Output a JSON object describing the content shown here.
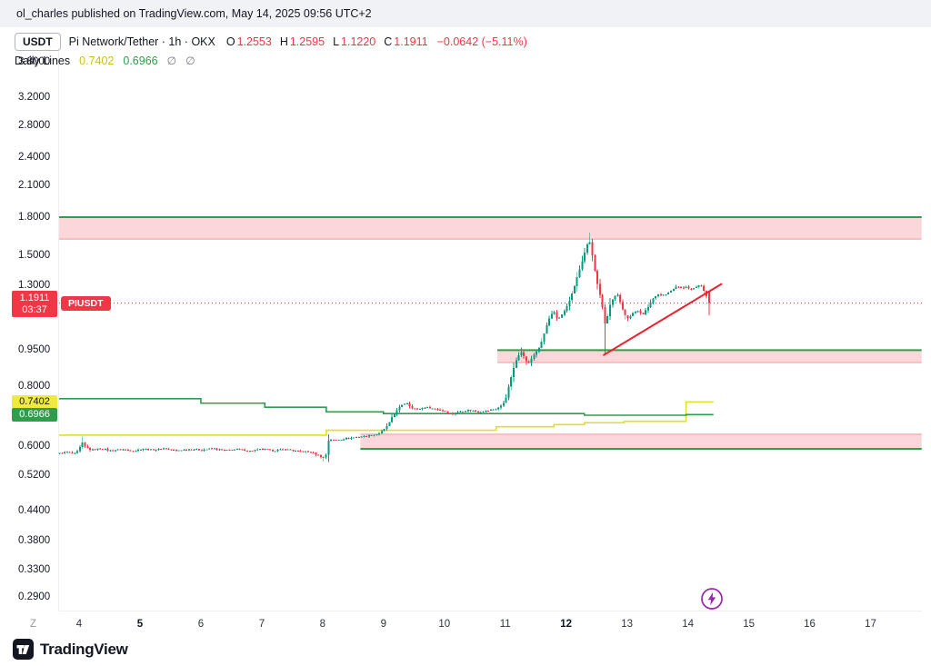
{
  "attribution": "ol_charles published on TradingView.com, May 14, 2025 09:56 UTC+2",
  "header": {
    "quote_chip": "USDT",
    "symbol_title": "Pi Network/Tether · 1h · OKX",
    "ohlc": [
      {
        "label": "O",
        "value": "1.2553"
      },
      {
        "label": "H",
        "value": "1.2595"
      },
      {
        "label": "L",
        "value": "1.1220"
      },
      {
        "label": "C",
        "value": "1.1911"
      }
    ],
    "change": "−0.0642 (−5.11%)",
    "indicator_row": {
      "label": "Daily Lines",
      "values": [
        {
          "text": "0.7402",
          "color": "#c5c118"
        },
        {
          "text": "0.6966",
          "color": "#2e9e4b"
        }
      ],
      "empties": [
        "∅",
        "∅"
      ]
    }
  },
  "axis": {
    "y_labels": [
      "3.8000",
      "3.2000",
      "2.8000",
      "2.4000",
      "2.1000",
      "1.8000",
      "1.5000",
      "1.3000",
      "0.9500",
      "0.8000",
      "0.6000",
      "0.5200",
      "0.4400",
      "0.3800",
      "0.3300",
      "0.2900"
    ],
    "x_labels": [
      {
        "label": "4",
        "day": 4,
        "bold": false
      },
      {
        "label": "5",
        "day": 5,
        "bold": true
      },
      {
        "label": "6",
        "day": 6,
        "bold": false
      },
      {
        "label": "7",
        "day": 7,
        "bold": false
      },
      {
        "label": "8",
        "day": 8,
        "bold": false
      },
      {
        "label": "9",
        "day": 9,
        "bold": false
      },
      {
        "label": "10",
        "day": 10,
        "bold": false
      },
      {
        "label": "11",
        "day": 11,
        "bold": false
      },
      {
        "label": "12",
        "day": 12,
        "bold": true
      },
      {
        "label": "13",
        "day": 13,
        "bold": false
      },
      {
        "label": "14",
        "day": 14,
        "bold": false
      },
      {
        "label": "15",
        "day": 15,
        "bold": false
      },
      {
        "label": "16",
        "day": 16,
        "bold": false
      },
      {
        "label": "17",
        "day": 17,
        "bold": false
      }
    ],
    "timezone_label": "Z"
  },
  "badges": {
    "price": "1.1911",
    "countdown": "03:37",
    "symbol_tag": "PIUSDT",
    "yellow": "0.7402",
    "green": "0.6966"
  },
  "footer": {
    "logo_text": "TradingView"
  },
  "chart_data": {
    "type": "candlestick",
    "symbol": "PIUSDT",
    "title": "Pi Network/Tether",
    "interval": "1h",
    "exchange": "OKX",
    "scale": "log",
    "colors": {
      "up": "#089981",
      "down": "#F23645",
      "zone_fill": "rgba(242,54,69,0.2)",
      "zone_green": "#2e9e4b",
      "zone_red_edge": "#ef9a9a",
      "trend": "#e8222e"
    },
    "current": {
      "open": 1.2553,
      "high": 1.2595,
      "low": 1.122,
      "close": 1.1911,
      "change": -0.0642,
      "change_pct": -5.11,
      "countdown": "03:37"
    },
    "candle_range": [
      3.68,
      14.35
    ],
    "price_path": [
      [
        3.68,
        0.578
      ],
      [
        3.8,
        0.582
      ],
      [
        3.92,
        0.576
      ],
      [
        4.0,
        0.586
      ],
      [
        4.04,
        0.612
      ],
      [
        4.1,
        0.596
      ],
      [
        4.2,
        0.588
      ],
      [
        4.35,
        0.592
      ],
      [
        4.5,
        0.586
      ],
      [
        4.7,
        0.59
      ],
      [
        4.9,
        0.585
      ],
      [
        5.05,
        0.591
      ],
      [
        5.2,
        0.588
      ],
      [
        5.4,
        0.592
      ],
      [
        5.6,
        0.586
      ],
      [
        5.8,
        0.59
      ],
      [
        6.0,
        0.588
      ],
      [
        6.2,
        0.592
      ],
      [
        6.4,
        0.586
      ],
      [
        6.6,
        0.59
      ],
      [
        6.8,
        0.585
      ],
      [
        7.0,
        0.59
      ],
      [
        7.2,
        0.586
      ],
      [
        7.4,
        0.59
      ],
      [
        7.6,
        0.584
      ],
      [
        7.8,
        0.582
      ],
      [
        7.95,
        0.572
      ],
      [
        8.02,
        0.566
      ],
      [
        8.07,
        0.578
      ],
      [
        8.1,
        0.62
      ],
      [
        8.2,
        0.616
      ],
      [
        8.35,
        0.62
      ],
      [
        8.5,
        0.624
      ],
      [
        8.7,
        0.628
      ],
      [
        8.9,
        0.634
      ],
      [
        9.0,
        0.645
      ],
      [
        9.1,
        0.672
      ],
      [
        9.2,
        0.708
      ],
      [
        9.3,
        0.728
      ],
      [
        9.38,
        0.738
      ],
      [
        9.45,
        0.722
      ],
      [
        9.55,
        0.714
      ],
      [
        9.7,
        0.722
      ],
      [
        9.85,
        0.716
      ],
      [
        10.0,
        0.71
      ],
      [
        10.12,
        0.698
      ],
      [
        10.25,
        0.706
      ],
      [
        10.4,
        0.712
      ],
      [
        10.55,
        0.706
      ],
      [
        10.7,
        0.71
      ],
      [
        10.85,
        0.716
      ],
      [
        10.95,
        0.728
      ],
      [
        11.02,
        0.76
      ],
      [
        11.08,
        0.82
      ],
      [
        11.14,
        0.872
      ],
      [
        11.2,
        0.92
      ],
      [
        11.26,
        0.946
      ],
      [
        11.32,
        0.912
      ],
      [
        11.38,
        0.888
      ],
      [
        11.44,
        0.916
      ],
      [
        11.5,
        0.94
      ],
      [
        11.56,
        0.958
      ],
      [
        11.62,
        1.01
      ],
      [
        11.68,
        1.07
      ],
      [
        11.74,
        1.12
      ],
      [
        11.8,
        1.14
      ],
      [
        11.86,
        1.1
      ],
      [
        11.92,
        1.125
      ],
      [
        11.98,
        1.15
      ],
      [
        12.04,
        1.19
      ],
      [
        12.1,
        1.25
      ],
      [
        12.16,
        1.32
      ],
      [
        12.22,
        1.4
      ],
      [
        12.28,
        1.48
      ],
      [
        12.33,
        1.555
      ],
      [
        12.38,
        1.615
      ],
      [
        12.42,
        1.52
      ],
      [
        12.46,
        1.42
      ],
      [
        12.5,
        1.33
      ],
      [
        12.55,
        1.25
      ],
      [
        12.6,
        1.16
      ],
      [
        12.64,
        1.08
      ],
      [
        12.68,
        1.12
      ],
      [
        12.72,
        1.18
      ],
      [
        12.78,
        1.225
      ],
      [
        12.84,
        1.245
      ],
      [
        12.9,
        1.18
      ],
      [
        12.96,
        1.13
      ],
      [
        13.02,
        1.105
      ],
      [
        13.1,
        1.135
      ],
      [
        13.18,
        1.15
      ],
      [
        13.26,
        1.125
      ],
      [
        13.34,
        1.165
      ],
      [
        13.42,
        1.215
      ],
      [
        13.5,
        1.245
      ],
      [
        13.58,
        1.235
      ],
      [
        13.66,
        1.245
      ],
      [
        13.74,
        1.268
      ],
      [
        13.82,
        1.292
      ],
      [
        13.9,
        1.278
      ],
      [
        13.98,
        1.286
      ],
      [
        14.06,
        1.27
      ],
      [
        14.14,
        1.288
      ],
      [
        14.22,
        1.298
      ],
      [
        14.28,
        1.255
      ],
      [
        14.35,
        1.1911
      ]
    ],
    "special_wicks": [
      {
        "day": 4.04,
        "high": 0.627
      },
      {
        "day": 8.02,
        "low": 0.556
      },
      {
        "day": 11.26,
        "high": 0.962
      },
      {
        "day": 12.38,
        "high": 1.672
      },
      {
        "day": 12.64,
        "low": 0.932
      },
      {
        "day": 14.35,
        "low": 1.122
      }
    ],
    "zones": [
      {
        "from_day": 3.67,
        "to_day": 17.84,
        "top": 1.8,
        "bottom": 1.62,
        "green_edge": "top"
      },
      {
        "from_day": 10.87,
        "to_day": 17.84,
        "top": 0.95,
        "bottom": 0.895,
        "green_edge": "top"
      },
      {
        "from_day": 8.62,
        "to_day": 17.84,
        "top": 0.634,
        "bottom": 0.591,
        "green_edge": "bottom"
      }
    ],
    "daily_lines": [
      {
        "name": "yellow-daily-line",
        "color": "#e2de2a",
        "value": 0.7402,
        "end_day": 14.42,
        "steps": [
          [
            3.67,
            0.631
          ],
          [
            8.06,
            0.646
          ],
          [
            10.85,
            0.657
          ],
          [
            11.8,
            0.664
          ],
          [
            12.3,
            0.67
          ],
          [
            12.95,
            0.6745
          ],
          [
            13.97,
            0.7402
          ]
        ]
      },
      {
        "name": "green-daily-line",
        "color": "#2e9e4b",
        "value": 0.6966,
        "end_day": 14.42,
        "steps": [
          [
            3.67,
            0.752
          ],
          [
            6.0,
            0.736
          ],
          [
            7.05,
            0.722
          ],
          [
            8.06,
            0.706
          ],
          [
            9.0,
            0.7
          ],
          [
            12.3,
            0.6946
          ],
          [
            13.97,
            0.6966
          ]
        ]
      }
    ],
    "trend_line": {
      "from": [
        12.62,
        0.928
      ],
      "to": [
        14.55,
        1.305
      ]
    },
    "price_line": {
      "price": 1.1911,
      "style": "dotted",
      "color": "#F23645"
    }
  }
}
